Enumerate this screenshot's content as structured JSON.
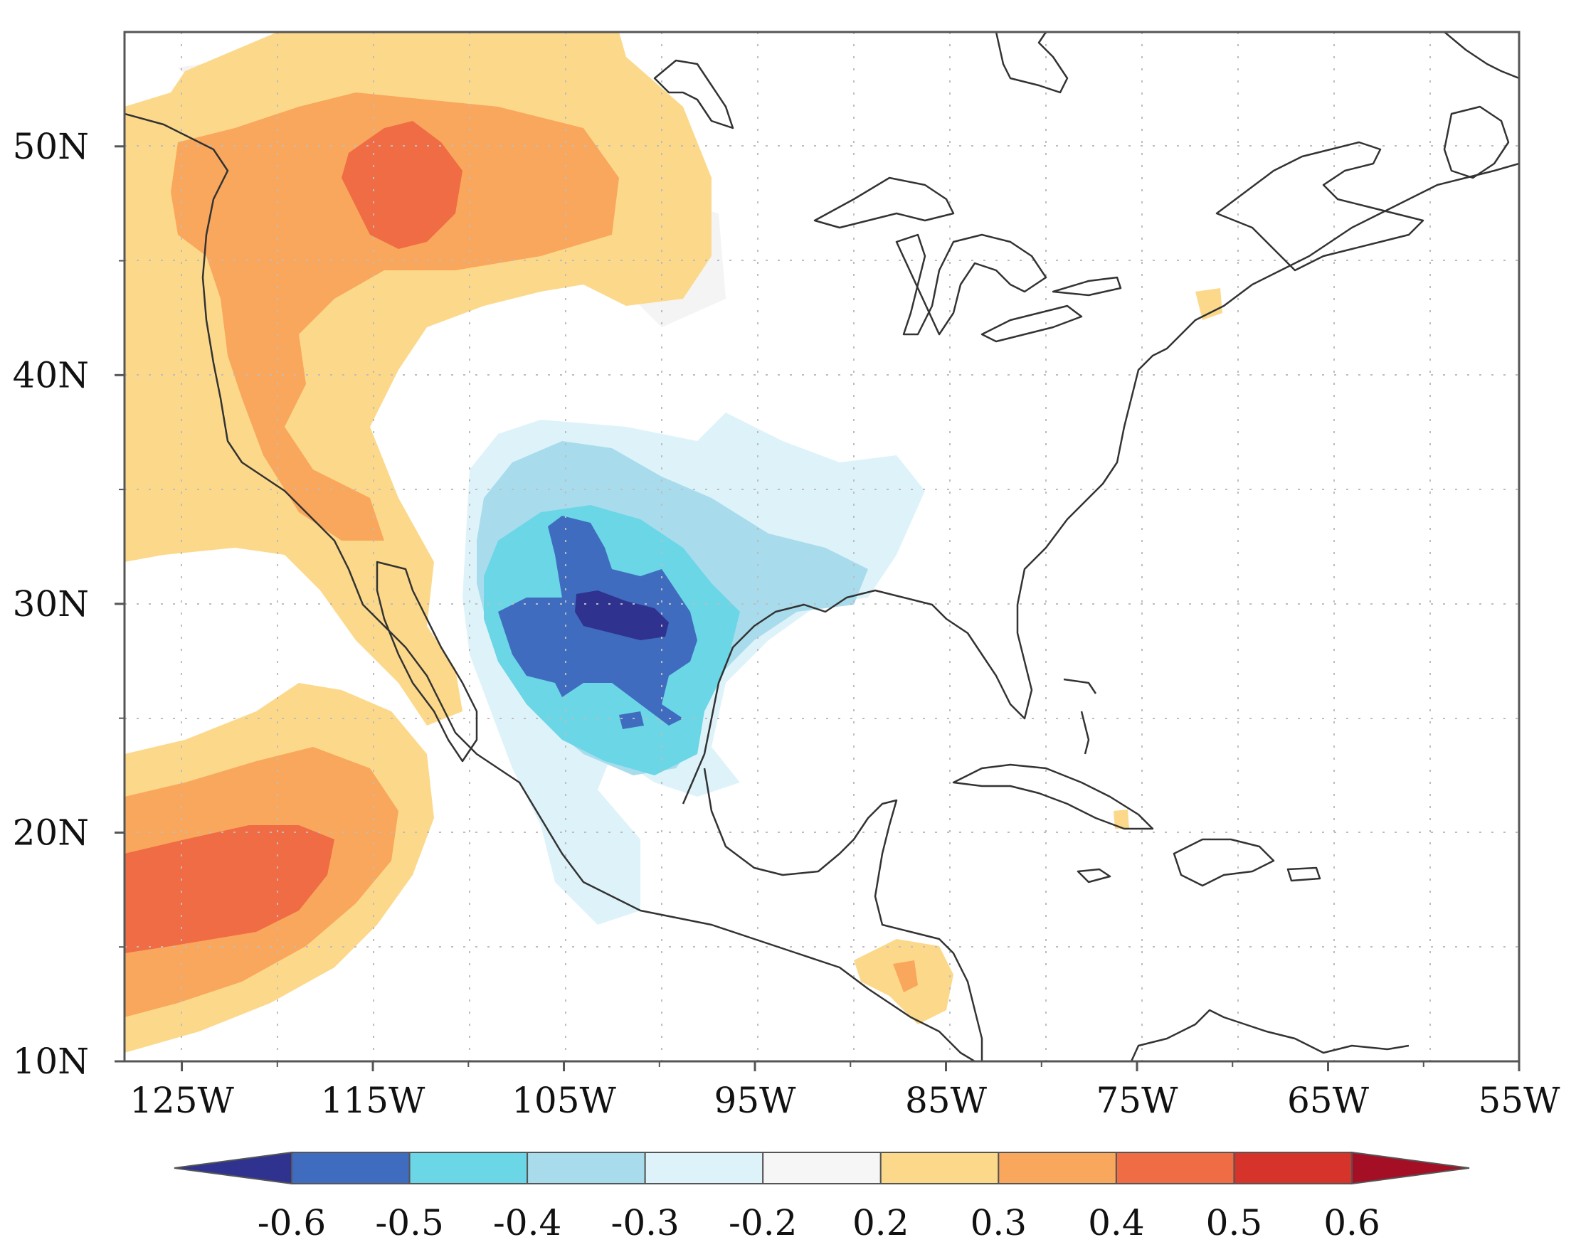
{
  "map": {
    "projection": "cylindrical equidistant",
    "lon_range": [
      -128,
      -55
    ],
    "lat_range": [
      10,
      55
    ],
    "x_ticks": [
      {
        "lon": -125,
        "label": "125W"
      },
      {
        "lon": -115,
        "label": "115W"
      },
      {
        "lon": -105,
        "label": "105W"
      },
      {
        "lon": -95,
        "label": "95W"
      },
      {
        "lon": -85,
        "label": "85W"
      },
      {
        "lon": -75,
        "label": "75W"
      },
      {
        "lon": -65,
        "label": "65W"
      },
      {
        "lon": -55,
        "label": "55W"
      }
    ],
    "x_minor_ticks": [
      -120,
      -110,
      -100,
      -90,
      -80,
      -70,
      -60
    ],
    "y_ticks": [
      {
        "lat": 50,
        "label": "50N"
      },
      {
        "lat": 40,
        "label": "40N"
      },
      {
        "lat": 30,
        "label": "30N"
      },
      {
        "lat": 20,
        "label": "20N"
      },
      {
        "lat": 10,
        "label": "10N"
      }
    ],
    "y_minor_ticks": [
      15,
      25,
      35,
      45
    ],
    "gridlines": "dotted",
    "coastlines": true
  },
  "colorbar": {
    "extend": "both",
    "levels": [
      "-0.6",
      "-0.5",
      "-0.4",
      "-0.3",
      "-0.2",
      "0.2",
      "0.3",
      "0.4",
      "0.5",
      "0.6"
    ],
    "colors": [
      "#3f6cbf",
      "#6ad6e6",
      "#a8dced",
      "#def3f9",
      "#f6f6f6",
      "#fcd98a",
      "#f9a75d",
      "#f06c44",
      "#d6332a"
    ],
    "under_color": "#2f338f",
    "over_color": "#a50f26"
  },
  "regions": [
    {
      "name": "western-us-positive",
      "value_range": "0.2 to 0.5"
    },
    {
      "name": "eastern-pacific-positive",
      "value_range": "0.2 to 0.5"
    },
    {
      "name": "southern-plains-mexico-negative",
      "value_range": "-0.2 to below -0.6"
    },
    {
      "name": "central-america-positive",
      "value_range": "0.2 to 0.4"
    }
  ]
}
